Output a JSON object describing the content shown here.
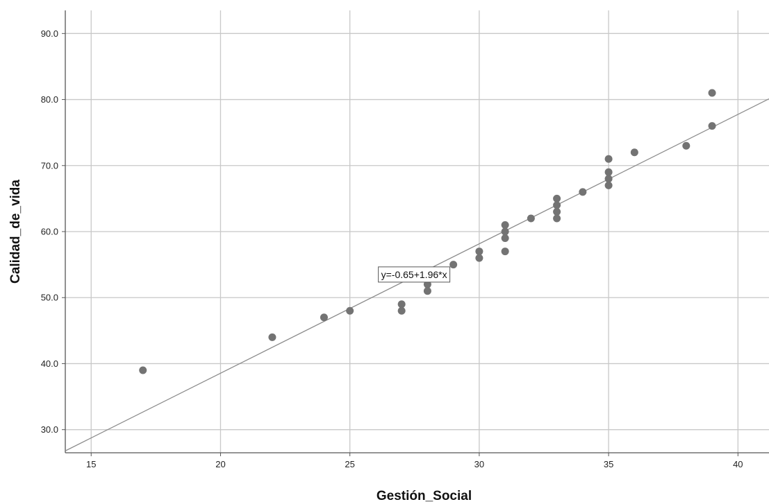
{
  "chart_data": {
    "type": "scatter",
    "title": "",
    "xlabel": "Gestión_Social",
    "ylabel": "Calidad_de_vida",
    "xlim": [
      14,
      41.2
    ],
    "ylim": [
      26.5,
      93.5
    ],
    "x_ticks": [
      15,
      20,
      25,
      30,
      35,
      40
    ],
    "x_tick_labels": [
      "15",
      "20",
      "25",
      "30",
      "35",
      "40"
    ],
    "y_ticks": [
      30,
      40,
      50,
      60,
      70,
      80,
      90
    ],
    "y_tick_labels": [
      "30.0",
      "40.0",
      "50.0",
      "60.0",
      "70.0",
      "80.0",
      "90.0"
    ],
    "grid": true,
    "points": [
      {
        "x": 17,
        "y": 39
      },
      {
        "x": 22,
        "y": 44
      },
      {
        "x": 24,
        "y": 47
      },
      {
        "x": 25,
        "y": 48
      },
      {
        "x": 27,
        "y": 49
      },
      {
        "x": 27,
        "y": 48
      },
      {
        "x": 28,
        "y": 52
      },
      {
        "x": 28,
        "y": 51
      },
      {
        "x": 29,
        "y": 55
      },
      {
        "x": 30,
        "y": 57
      },
      {
        "x": 30,
        "y": 56
      },
      {
        "x": 31,
        "y": 61
      },
      {
        "x": 31,
        "y": 60
      },
      {
        "x": 31,
        "y": 59
      },
      {
        "x": 31,
        "y": 57
      },
      {
        "x": 32,
        "y": 62
      },
      {
        "x": 33,
        "y": 65
      },
      {
        "x": 33,
        "y": 64
      },
      {
        "x": 33,
        "y": 63
      },
      {
        "x": 33,
        "y": 62
      },
      {
        "x": 34,
        "y": 66
      },
      {
        "x": 35,
        "y": 71
      },
      {
        "x": 35,
        "y": 69
      },
      {
        "x": 35,
        "y": 68
      },
      {
        "x": 35,
        "y": 67
      },
      {
        "x": 36,
        "y": 72
      },
      {
        "x": 38,
        "y": 73
      },
      {
        "x": 39,
        "y": 81
      },
      {
        "x": 39,
        "y": 76
      }
    ],
    "fit_line": {
      "intercept": -0.65,
      "slope": 1.96
    },
    "annotation": {
      "text": "y=-0.65+1.96*x",
      "x": 26.1,
      "y": 53.5
    },
    "colors": {
      "points": "#737373",
      "line": "#8c8c8c",
      "grid": "#c8c8c8",
      "axis": "#555555"
    }
  }
}
